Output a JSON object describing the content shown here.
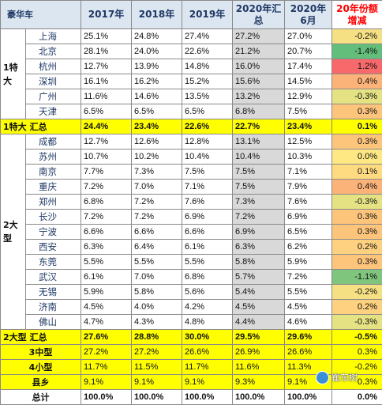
{
  "header": {
    "label": "豪华车",
    "cols": [
      "2017年",
      "2018年",
      "2019年",
      "2020年汇总",
      "2020年6月"
    ],
    "change": "20年份额增减"
  },
  "groups": [
    {
      "name": "1特大",
      "rows": [
        {
          "city": "上海",
          "v": [
            "25.1%",
            "24.8%",
            "27.4%",
            "27.2%",
            "27.0%"
          ],
          "chg": "-0.2%",
          "color": "#f5e083"
        },
        {
          "city": "北京",
          "v": [
            "28.1%",
            "24.0%",
            "22.6%",
            "21.2%",
            "20.7%"
          ],
          "chg": "-1.4%",
          "color": "#63be7b"
        },
        {
          "city": "杭州",
          "v": [
            "12.7%",
            "13.9%",
            "14.8%",
            "16.0%",
            "17.4%"
          ],
          "chg": "1.2%",
          "color": "#f8696b"
        },
        {
          "city": "深圳",
          "v": [
            "16.1%",
            "16.2%",
            "15.2%",
            "15.6%",
            "14.5%"
          ],
          "chg": "0.4%",
          "color": "#fcb37a"
        },
        {
          "city": "广州",
          "v": [
            "11.6%",
            "14.6%",
            "13.5%",
            "13.2%",
            "12.9%"
          ],
          "chg": "-0.3%",
          "color": "#e4e283"
        },
        {
          "city": "天津",
          "v": [
            "6.5%",
            "6.5%",
            "6.5%",
            "6.8%",
            "7.5%"
          ],
          "chg": "0.3%",
          "color": "#fdc47c"
        }
      ],
      "total": {
        "label": "1特大 汇总",
        "v": [
          "24.4%",
          "23.4%",
          "22.6%",
          "22.7%",
          "23.4%"
        ],
        "chg": "0.1%"
      }
    },
    {
      "name": "2大型",
      "rows": [
        {
          "city": "成都",
          "v": [
            "12.7%",
            "12.6%",
            "12.8%",
            "13.1%",
            "12.5%"
          ],
          "chg": "0.3%",
          "color": "#fdc47c"
        },
        {
          "city": "苏州",
          "v": [
            "10.7%",
            "10.2%",
            "10.4%",
            "10.4%",
            "10.3%"
          ],
          "chg": "0.0%",
          "color": "#fee884"
        },
        {
          "city": "南京",
          "v": [
            "7.7%",
            "7.3%",
            "7.5%",
            "7.5%",
            "7.1%"
          ],
          "chg": "0.1%",
          "color": "#fedb81"
        },
        {
          "city": "重庆",
          "v": [
            "7.2%",
            "7.0%",
            "7.1%",
            "7.5%",
            "7.9%"
          ],
          "chg": "0.4%",
          "color": "#fcb37a"
        },
        {
          "city": "郑州",
          "v": [
            "6.8%",
            "7.2%",
            "7.6%",
            "7.3%",
            "7.6%"
          ],
          "chg": "-0.3%",
          "color": "#e4e283"
        },
        {
          "city": "长沙",
          "v": [
            "7.2%",
            "7.2%",
            "6.9%",
            "7.2%",
            "6.9%"
          ],
          "chg": "0.3%",
          "color": "#fdc47c"
        },
        {
          "city": "宁波",
          "v": [
            "6.6%",
            "6.6%",
            "6.6%",
            "6.9%",
            "6.5%"
          ],
          "chg": "0.3%",
          "color": "#fdc47c"
        },
        {
          "city": "西安",
          "v": [
            "6.3%",
            "6.4%",
            "6.1%",
            "6.3%",
            "6.2%"
          ],
          "chg": "0.2%",
          "color": "#fdd17f"
        },
        {
          "city": "东莞",
          "v": [
            "5.5%",
            "5.5%",
            "5.5%",
            "5.8%",
            "5.9%"
          ],
          "chg": "0.3%",
          "color": "#fdc47c"
        },
        {
          "city": "武汉",
          "v": [
            "6.1%",
            "7.0%",
            "6.8%",
            "5.7%",
            "7.2%"
          ],
          "chg": "-1.1%",
          "color": "#7fc57d"
        },
        {
          "city": "无锡",
          "v": [
            "5.9%",
            "5.8%",
            "5.6%",
            "5.4%",
            "5.5%"
          ],
          "chg": "-0.2%",
          "color": "#f5e083"
        },
        {
          "city": "济南",
          "v": [
            "4.5%",
            "4.0%",
            "4.2%",
            "4.5%",
            "4.5%"
          ],
          "chg": "0.2%",
          "color": "#fdd17f"
        },
        {
          "city": "佛山",
          "v": [
            "4.7%",
            "4.3%",
            "4.8%",
            "4.4%",
            "4.6%"
          ],
          "chg": "-0.3%",
          "color": "#e4e283"
        }
      ],
      "total": {
        "label": "2大型 汇总",
        "v": [
          "27.6%",
          "28.8%",
          "30.0%",
          "29.5%",
          "29.6%"
        ],
        "chg": "-0.5%"
      }
    }
  ],
  "extra_rows": [
    {
      "label": "3中型",
      "v": [
        "27.2%",
        "27.2%",
        "26.6%",
        "26.9%",
        "26.6%"
      ],
      "chg": "0.3%"
    },
    {
      "label": "4小型",
      "v": [
        "11.7%",
        "11.5%",
        "11.7%",
        "11.6%",
        "11.3%"
      ],
      "chg": "-0.2%"
    },
    {
      "label": "县乡",
      "v": [
        "9.1%",
        "9.1%",
        "9.1%",
        "9.3%",
        "9.1%"
      ],
      "chg": "0.3%"
    }
  ],
  "grand_total": {
    "label": "总计",
    "v": [
      "100.0%",
      "100.0%",
      "100.0%",
      "100.0%",
      "100.0%"
    ],
    "chg": "0.0%"
  },
  "watermark": {
    "text": "崔东树"
  }
}
